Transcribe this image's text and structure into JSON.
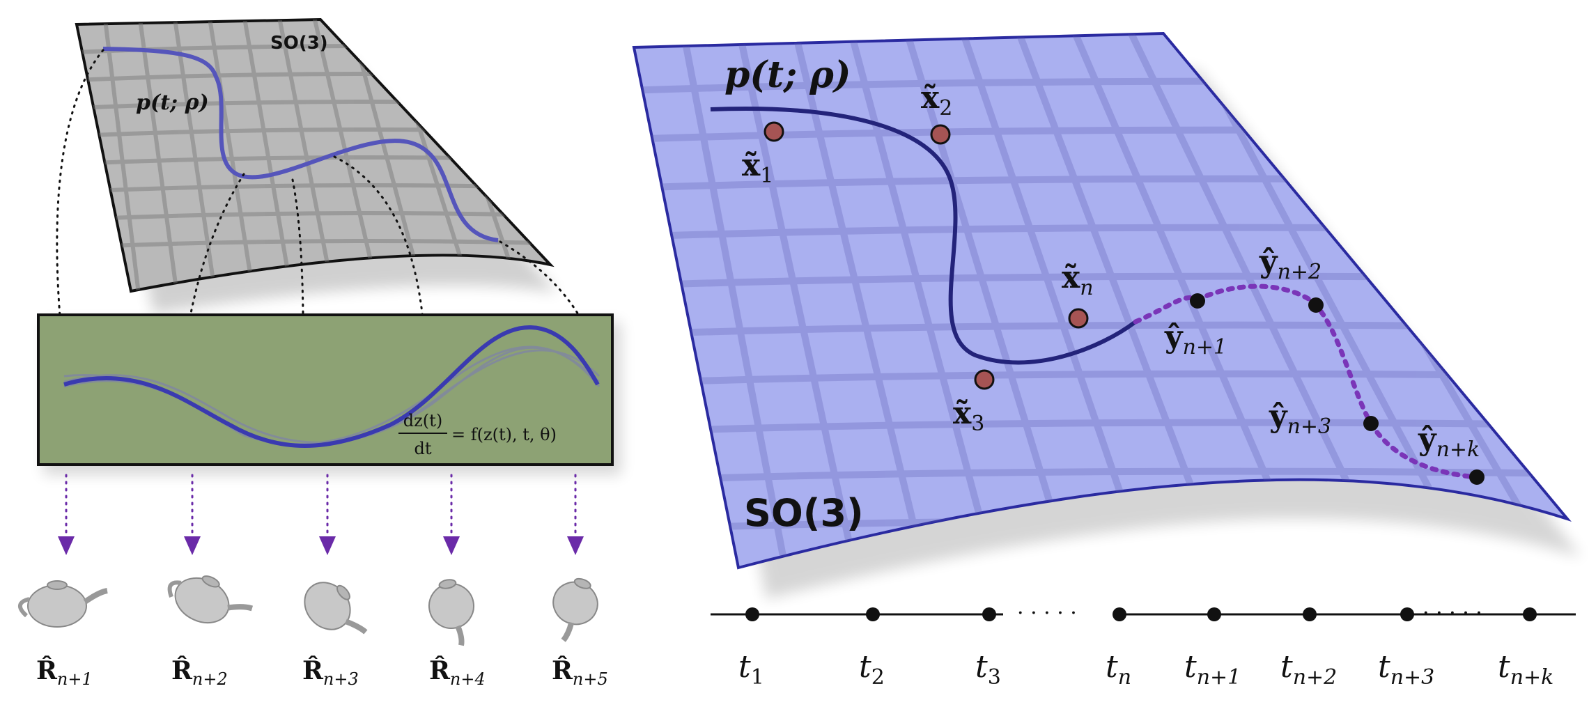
{
  "left_panel": {
    "manifold_label": "SO(3)",
    "curve_label_main": "p(t; ρ)",
    "latent_box": {
      "equation": {
        "num": "dz(t)",
        "den": "dt",
        "rhs": "= f(z(t), t, θ)"
      }
    },
    "outputs": [
      {
        "base": "R̂",
        "sub": "n+1"
      },
      {
        "base": "R̂",
        "sub": "n+2"
      },
      {
        "base": "R̂",
        "sub": "n+3"
      },
      {
        "base": "R̂",
        "sub": "n+4"
      },
      {
        "base": "R̂",
        "sub": "n+5"
      }
    ]
  },
  "right_panel": {
    "manifold_label": "SO(3)",
    "curve_label_main": "p(t; ρ)",
    "observations": [
      {
        "base": "x̃",
        "sub": "1"
      },
      {
        "base": "x̃",
        "sub": "2"
      },
      {
        "base": "x̃",
        "sub": "3"
      },
      {
        "base": "x̃",
        "sub": "n"
      }
    ],
    "predictions": [
      {
        "base": "ŷ",
        "sub": "n+1"
      },
      {
        "base": "ŷ",
        "sub": "n+2"
      },
      {
        "base": "ŷ",
        "sub": "n+3"
      },
      {
        "base": "ŷ",
        "sub": "n+k"
      }
    ],
    "timeline": [
      {
        "base": "t",
        "sub": "1"
      },
      {
        "base": "t",
        "sub": "2"
      },
      {
        "base": "t",
        "sub": "3"
      },
      {
        "base": "t",
        "sub": "n"
      },
      {
        "base": "t",
        "sub": "n+1"
      },
      {
        "base": "t",
        "sub": "n+2"
      },
      {
        "base": "t",
        "sub": "n+3"
      },
      {
        "base": "t",
        "sub": "n+k"
      }
    ],
    "timeline_ellipsis": "· · · · ·"
  },
  "colors": {
    "left_manifold": "#b9b9b9",
    "right_manifold": "#aab0f0",
    "curve": "#23237a",
    "curve_left": "#5555bb",
    "latent_box": "#8da274",
    "prediction_dots": "#7a35b8",
    "observation_fill": "#a65454"
  }
}
